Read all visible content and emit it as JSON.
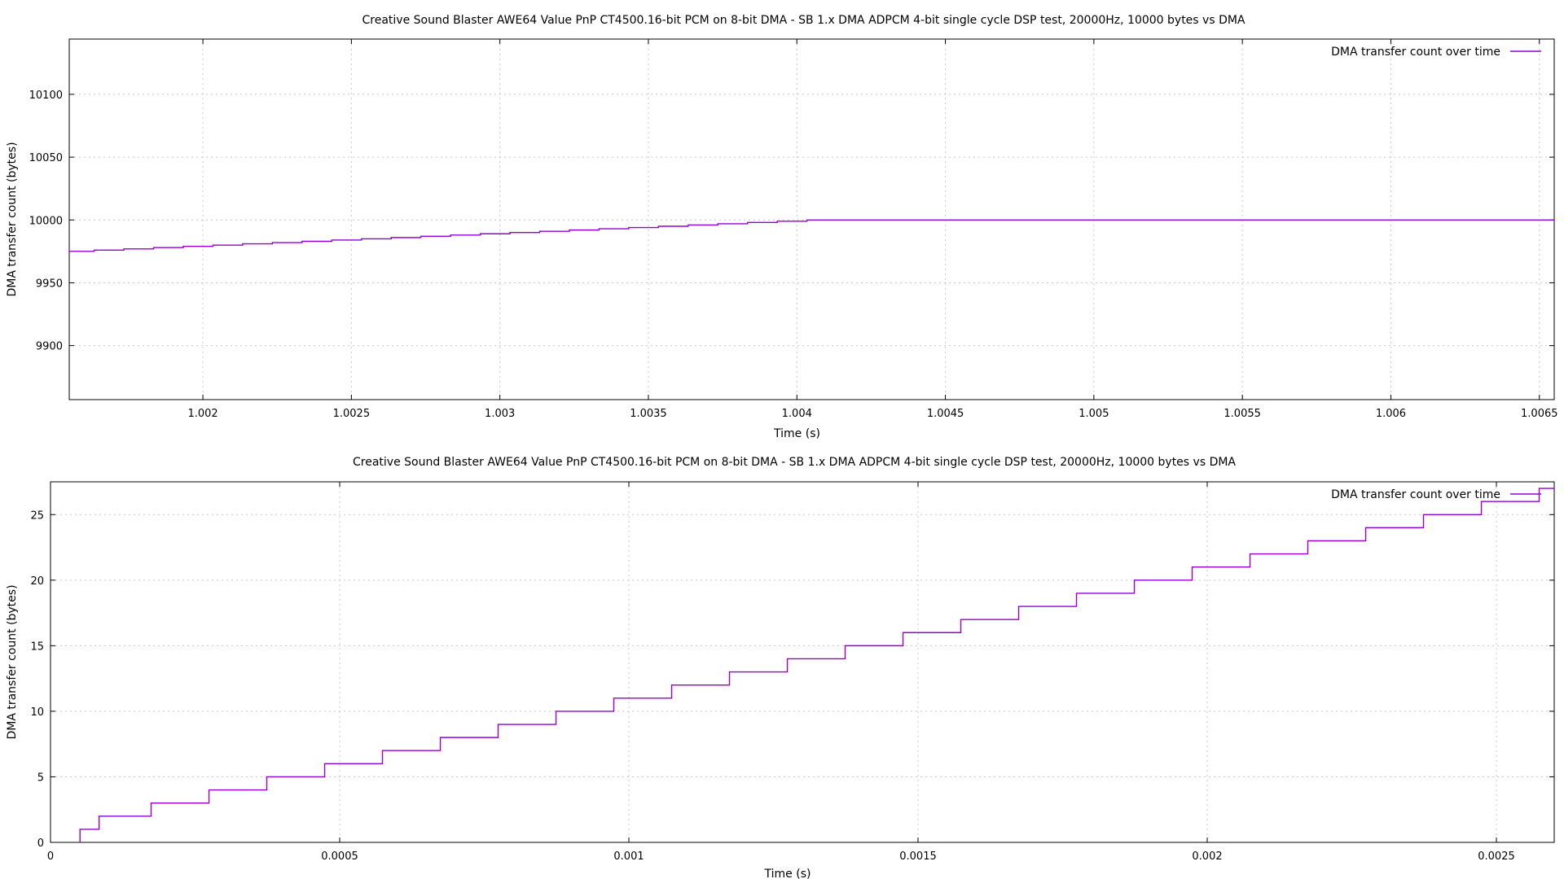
{
  "colors": {
    "series": "#9400d3",
    "grid": "#c8c8c8"
  },
  "chart_data": [
    {
      "type": "line",
      "title": "Creative Sound Blaster AWE64 Value PnP CT4500.16-bit PCM on 8-bit DMA - SB 1.x DMA ADPCM 4-bit single cycle DSP test, 20000Hz, 10000 bytes vs DMA",
      "xlabel": "Time (s)",
      "ylabel": "DMA transfer count (bytes)",
      "xlim": [
        1.00155,
        1.00655
      ],
      "ylim": [
        9857,
        10144
      ],
      "x_ticks": [
        1.002,
        1.0025,
        1.003,
        1.0035,
        1.004,
        1.0045,
        1.005,
        1.0055,
        1.006,
        1.0065
      ],
      "x_tick_labels": [
        "1.002",
        "1.0025",
        "1.003",
        "1.0035",
        "1.004",
        "1.0045",
        "1.005",
        "1.0055",
        "1.006",
        "1.0065"
      ],
      "y_ticks": [
        9900,
        9950,
        10000,
        10050,
        10100
      ],
      "y_tick_labels": [
        "9900",
        "9950",
        "10000",
        "10050",
        "10100"
      ],
      "grid": true,
      "legend": "top-right",
      "step": true,
      "series": [
        {
          "name": "DMA transfer count over time",
          "x": [
            1.00155,
            1.001634,
            1.001734,
            1.001834,
            1.001934,
            1.002034,
            1.002134,
            1.002234,
            1.002334,
            1.002434,
            1.002534,
            1.002634,
            1.002734,
            1.002834,
            1.002934,
            1.003034,
            1.003134,
            1.003234,
            1.003334,
            1.003434,
            1.003534,
            1.003634,
            1.003734,
            1.003834,
            1.003934,
            1.004034,
            1.00655
          ],
          "y": [
            9975,
            9976,
            9977,
            9978,
            9979,
            9980,
            9981,
            9982,
            9983,
            9984,
            9985,
            9986,
            9987,
            9988,
            9989,
            9990,
            9991,
            9992,
            9993,
            9994,
            9995,
            9996,
            9997,
            9998,
            9999,
            10000,
            10000
          ]
        }
      ]
    },
    {
      "type": "line",
      "title": "Creative Sound Blaster AWE64 Value PnP CT4500.16-bit PCM on 8-bit DMA - SB 1.x DMA ADPCM 4-bit single cycle DSP test, 20000Hz, 10000 bytes vs DMA",
      "xlabel": "Time (s)",
      "ylabel": "DMA transfer count (bytes)",
      "xlim": [
        0,
        0.0026
      ],
      "ylim": [
        0,
        27.5
      ],
      "x_ticks": [
        0,
        0.0005,
        0.001,
        0.0015,
        0.002,
        0.0025
      ],
      "x_tick_labels": [
        "0",
        "0.0005",
        "0.001",
        "0.0015",
        "0.002",
        "0.0025"
      ],
      "y_ticks": [
        0,
        5,
        10,
        15,
        20,
        25
      ],
      "y_tick_labels": [
        "0",
        "5",
        "10",
        "15",
        "20",
        "25"
      ],
      "grid": true,
      "legend": "top-right",
      "step": true,
      "series": [
        {
          "name": "DMA transfer count over time",
          "x": [
            5.1e-05,
            8.4e-05,
            0.000174,
            0.000274,
            0.000374,
            0.000474,
            0.000574,
            0.000674,
            0.000774,
            0.000874,
            0.000974,
            0.001074,
            0.001174,
            0.001274,
            0.001374,
            0.001474,
            0.001574,
            0.001674,
            0.001774,
            0.001874,
            0.001974,
            0.002074,
            0.002174,
            0.002274,
            0.002374,
            0.002474,
            0.002574,
            0.0026
          ],
          "y": [
            1,
            2,
            3,
            4,
            5,
            6,
            7,
            8,
            9,
            10,
            11,
            12,
            13,
            14,
            15,
            16,
            17,
            18,
            19,
            20,
            21,
            22,
            23,
            24,
            25,
            26,
            27,
            27
          ]
        }
      ]
    }
  ]
}
